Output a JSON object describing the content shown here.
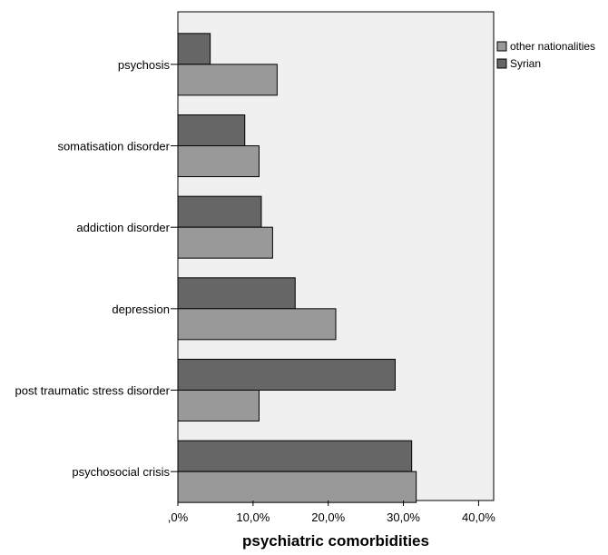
{
  "chart_data": {
    "type": "bar",
    "orientation": "horizontal",
    "title": "",
    "xlabel": "psychiatric comorbidities",
    "ylabel": "",
    "categories": [
      "psychosis",
      "somatisation disorder",
      "addiction disorder",
      "depression",
      "post traumatic stress disorder",
      "psychosocial crisis"
    ],
    "series": [
      {
        "name": "Syrian",
        "color": "#666666",
        "values": [
          4.3,
          8.9,
          11.1,
          15.6,
          28.9,
          31.1
        ]
      },
      {
        "name": "other nationalities",
        "color": "#999999",
        "values": [
          13.2,
          10.8,
          12.6,
          21.0,
          10.8,
          31.7
        ]
      }
    ],
    "xlim": [
      0,
      42
    ],
    "x_ticks": [
      0,
      10,
      20,
      30,
      40
    ],
    "x_tick_labels": [
      ",0%",
      "10,0%",
      "20,0%",
      "30,0%",
      "40,0%"
    ],
    "legend": {
      "position": "top-right",
      "entries": [
        "other nationalities",
        "Syrian"
      ]
    },
    "grid": false,
    "plot_background": "#f0f0f0"
  }
}
